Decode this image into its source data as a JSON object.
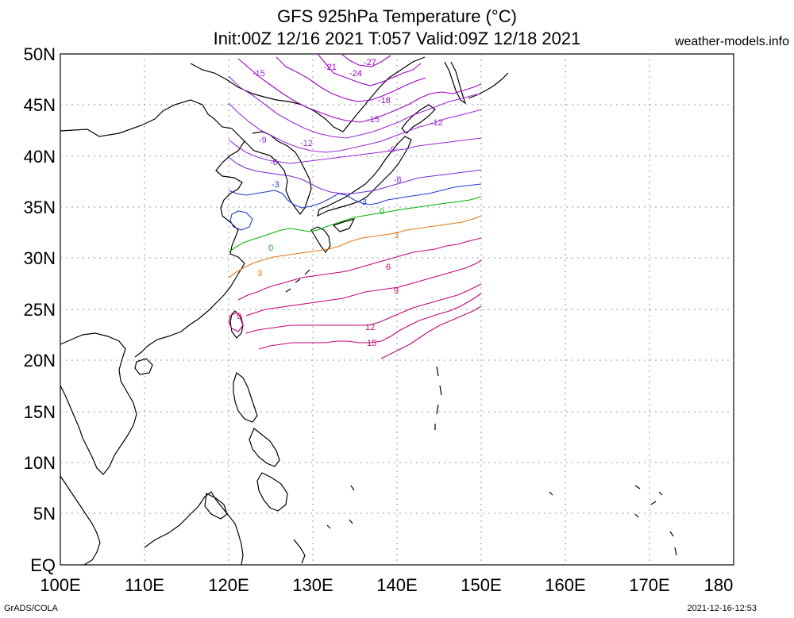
{
  "title_line1": "GFS 925hPa Temperature (°C)",
  "title_line2": "Init:00Z 12/16 2021 T:057 Valid:09Z 12/18 2021",
  "credit": "weather-models.info",
  "footer_left": "GrADS/COLA",
  "footer_right": "2021-12-16-12:53",
  "lat_labels": [
    "50N",
    "45N",
    "40N",
    "35N",
    "30N",
    "25N",
    "20N",
    "15N",
    "10N",
    "5N",
    "EQ"
  ],
  "lon_labels": [
    "100E",
    "110E",
    "120E",
    "130E",
    "140E",
    "150E",
    "160E",
    "170E",
    "180"
  ],
  "contour_labels": {
    "m27": "-27",
    "m24": "-24",
    "m21": "-21",
    "m18": "-18",
    "m15a": "-15",
    "m15b": "-15",
    "m12a": "-12",
    "m12b": "-12",
    "m9a": "-9",
    "m9b": "-9",
    "m6a": "-6",
    "m6b": "-6",
    "m3a": "-3",
    "m3b": "-3",
    "z0a": "0",
    "z0b": "0",
    "p3a": "3",
    "p3b": "3",
    "p6": "6",
    "p9a": "9",
    "p9b": "9",
    "p12": "12",
    "p15": "15"
  },
  "colors": {
    "m27": "#a000c8",
    "m24": "#a000c8",
    "m21": "#a000c8",
    "m18": "#a000c8",
    "m15": "#9a2ad8",
    "m12": "#9a2ad8",
    "m9": "#9a2ad8",
    "m6": "#7a2ad8",
    "m3": "#1e3cd2",
    "zero": "#00b400",
    "p3": "#e07814",
    "warm": "#c8007a"
  }
}
